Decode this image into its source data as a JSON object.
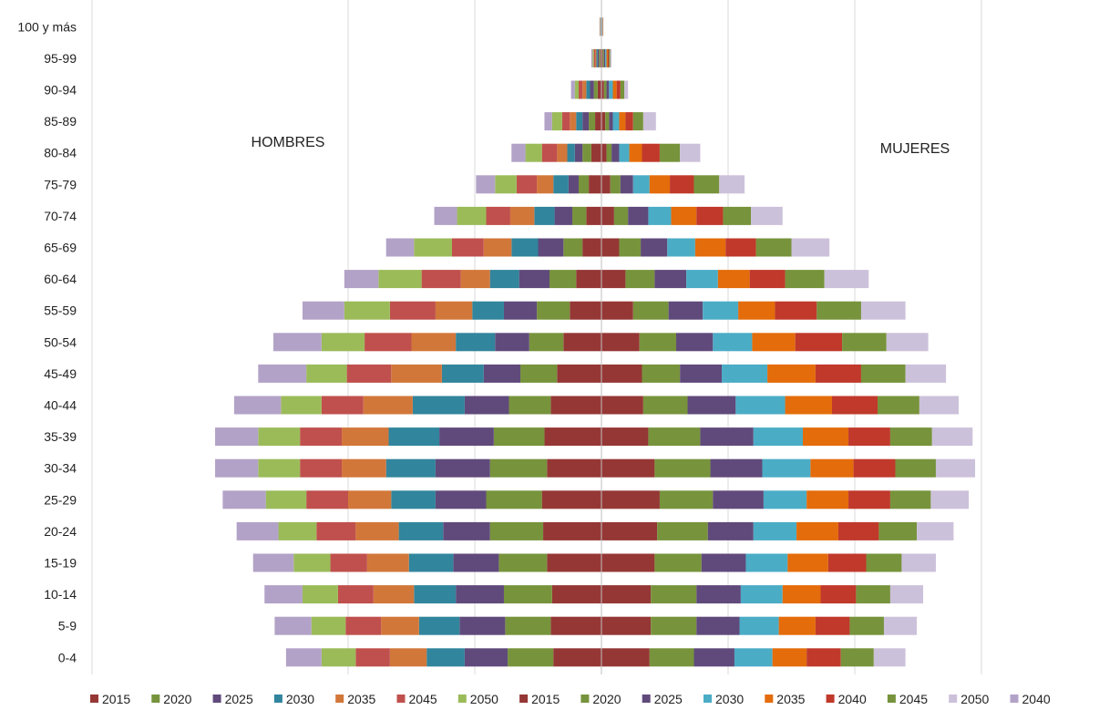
{
  "chart_data": {
    "type": "bar",
    "orientation": "horizontal-stacked-population-pyramid",
    "categories": [
      "100 y más",
      "95-99",
      "90-94",
      "85-89",
      "80-84",
      "75-79",
      "70-74",
      "65-69",
      "60-64",
      "55-59",
      "50-54",
      "45-49",
      "40-44",
      "35-39",
      "30-34",
      "25-29",
      "20-24",
      "15-19",
      "10-14",
      "5-9",
      "0-4"
    ],
    "left_label": "HOMBRES",
    "right_label": "MUJERES",
    "xlim": [
      -3000000,
      3000000
    ],
    "grid_x": [
      -2000000,
      -1000000,
      0,
      1000000,
      2000000,
      3000000
    ],
    "grid": true,
    "legend_position": "bottom",
    "series_left": [
      {
        "name": "2015",
        "color": "#953735",
        "values": [
          2000,
          10000,
          30000,
          50000,
          80000,
          100000,
          120000,
          150000,
          200000,
          250000,
          300000,
          350000,
          400000,
          450000,
          430000,
          470000,
          460000,
          430000,
          390000,
          400000,
          380000
        ]
      },
      {
        "name": "2020",
        "color": "#77933C",
        "values": [
          2000,
          10000,
          30000,
          50000,
          70000,
          80000,
          110000,
          150000,
          210000,
          260000,
          270000,
          290000,
          330000,
          400000,
          450000,
          440000,
          420000,
          380000,
          380000,
          360000,
          360000
        ]
      },
      {
        "name": "2025",
        "color": "#604A7B",
        "values": [
          2000,
          10000,
          30000,
          50000,
          60000,
          80000,
          140000,
          200000,
          240000,
          260000,
          270000,
          290000,
          350000,
          430000,
          430000,
          400000,
          370000,
          360000,
          380000,
          360000,
          340000
        ]
      },
      {
        "name": "2030",
        "color": "#31859C",
        "values": [
          2000,
          10000,
          30000,
          50000,
          60000,
          120000,
          160000,
          210000,
          230000,
          250000,
          310000,
          330000,
          410000,
          400000,
          390000,
          350000,
          350000,
          350000,
          330000,
          320000,
          300000
        ]
      },
      {
        "name": "2035",
        "color": "#D2773A",
        "values": [
          2000,
          10000,
          30000,
          50000,
          80000,
          130000,
          190000,
          220000,
          230000,
          290000,
          350000,
          400000,
          390000,
          370000,
          350000,
          340000,
          340000,
          330000,
          320000,
          300000,
          290000
        ]
      },
      {
        "name": "2045",
        "color": "#C0504D",
        "values": [
          2000,
          10000,
          30000,
          60000,
          120000,
          160000,
          190000,
          250000,
          310000,
          360000,
          370000,
          350000,
          330000,
          330000,
          330000,
          330000,
          310000,
          290000,
          280000,
          280000,
          270000
        ]
      },
      {
        "name": "2050",
        "color": "#9BBB59",
        "values": [
          2000,
          10000,
          30000,
          80000,
          130000,
          170000,
          230000,
          300000,
          340000,
          360000,
          340000,
          320000,
          320000,
          330000,
          330000,
          320000,
          300000,
          290000,
          280000,
          270000,
          270000
        ]
      },
      {
        "name": "2040",
        "color": "#B3A2C7",
        "values": [
          2000,
          10000,
          30000,
          60000,
          110000,
          150000,
          180000,
          220000,
          270000,
          330000,
          380000,
          380000,
          370000,
          340000,
          340000,
          340000,
          330000,
          320000,
          300000,
          290000,
          280000
        ]
      }
    ],
    "series_right": [
      {
        "name": "2015",
        "color": "#953735",
        "values": [
          2000,
          10000,
          20000,
          30000,
          40000,
          70000,
          100000,
          140000,
          190000,
          250000,
          300000,
          320000,
          330000,
          370000,
          420000,
          460000,
          440000,
          420000,
          390000,
          390000,
          380000
        ]
      },
      {
        "name": "2020",
        "color": "#77933C",
        "values": [
          2000,
          10000,
          20000,
          30000,
          40000,
          80000,
          110000,
          170000,
          230000,
          280000,
          290000,
          300000,
          350000,
          410000,
          440000,
          420000,
          400000,
          370000,
          360000,
          360000,
          350000
        ]
      },
      {
        "name": "2025",
        "color": "#604A7B",
        "values": [
          2000,
          10000,
          20000,
          30000,
          60000,
          100000,
          160000,
          210000,
          250000,
          270000,
          290000,
          330000,
          380000,
          420000,
          410000,
          400000,
          360000,
          350000,
          350000,
          340000,
          320000
        ]
      },
      {
        "name": "2030",
        "color": "#4BACC6",
        "values": [
          2000,
          10000,
          30000,
          50000,
          80000,
          130000,
          180000,
          220000,
          250000,
          280000,
          310000,
          360000,
          390000,
          390000,
          380000,
          340000,
          340000,
          330000,
          330000,
          310000,
          300000
        ]
      },
      {
        "name": "2035",
        "color": "#E46C0A",
        "values": [
          2000,
          10000,
          30000,
          50000,
          100000,
          160000,
          200000,
          240000,
          250000,
          290000,
          340000,
          380000,
          370000,
          360000,
          340000,
          330000,
          330000,
          320000,
          300000,
          290000,
          270000
        ]
      },
      {
        "name": "2040",
        "color": "#C0392B",
        "values": [
          2000,
          10000,
          30000,
          60000,
          140000,
          190000,
          210000,
          240000,
          280000,
          330000,
          370000,
          360000,
          360000,
          330000,
          330000,
          330000,
          320000,
          300000,
          280000,
          270000,
          270000
        ]
      },
      {
        "name": "2045",
        "color": "#77933C",
        "values": [
          2000,
          10000,
          30000,
          80000,
          160000,
          200000,
          220000,
          280000,
          310000,
          350000,
          350000,
          350000,
          330000,
          330000,
          320000,
          320000,
          300000,
          280000,
          270000,
          270000,
          260000
        ]
      },
      {
        "name": "2050",
        "color": "#CCC1DA",
        "values": [
          2000,
          10000,
          30000,
          100000,
          160000,
          200000,
          250000,
          300000,
          350000,
          350000,
          330000,
          320000,
          310000,
          320000,
          310000,
          300000,
          290000,
          270000,
          260000,
          260000,
          250000
        ]
      }
    ],
    "legend": [
      {
        "name": "2015",
        "color": "#953735"
      },
      {
        "name": "2020",
        "color": "#77933C"
      },
      {
        "name": "2025",
        "color": "#604A7B"
      },
      {
        "name": "2030",
        "color": "#31859C"
      },
      {
        "name": "2035",
        "color": "#D2773A"
      },
      {
        "name": "2045",
        "color": "#C0504D"
      },
      {
        "name": "2050",
        "color": "#9BBB59"
      },
      {
        "name": "2015",
        "color": "#953735"
      },
      {
        "name": "2020",
        "color": "#77933C"
      },
      {
        "name": "2025",
        "color": "#604A7B"
      },
      {
        "name": "2030",
        "color": "#4BACC6"
      },
      {
        "name": "2035",
        "color": "#E46C0A"
      },
      {
        "name": "2040",
        "color": "#C0392B"
      },
      {
        "name": "2045",
        "color": "#77933C"
      },
      {
        "name": "2050",
        "color": "#CCC1DA"
      },
      {
        "name": "2040",
        "color": "#B3A2C7"
      }
    ]
  }
}
